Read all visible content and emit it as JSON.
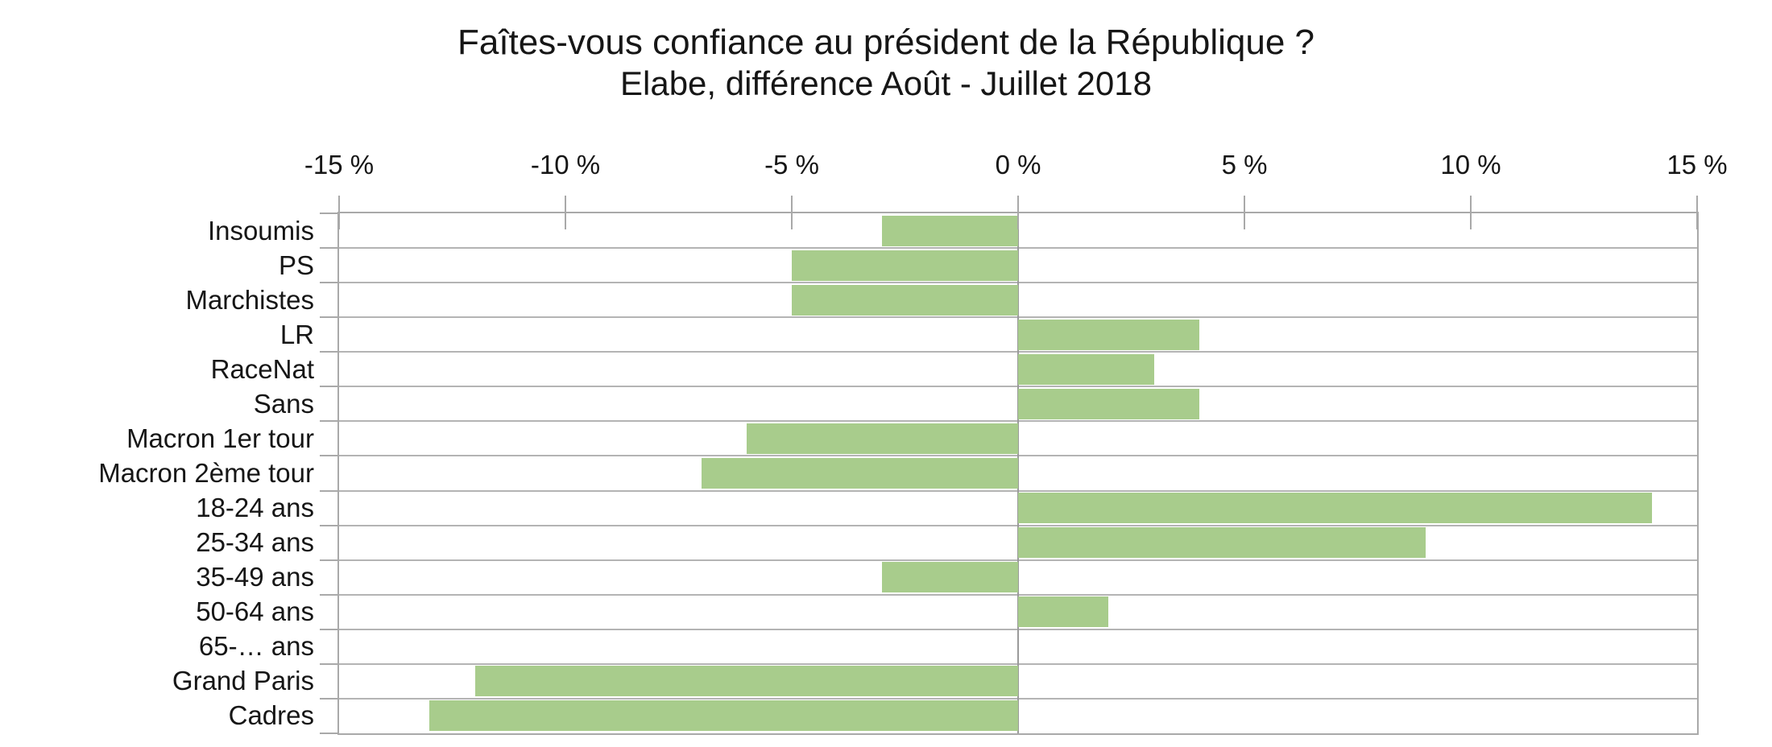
{
  "chart_data": {
    "type": "bar",
    "orientation": "horizontal",
    "title": "Faîtes-vous confiance au président de la République ?",
    "subtitle": "Elabe, différence Août - Juillet 2018",
    "categories": [
      "Insoumis",
      "PS",
      "Marchistes",
      "LR",
      "RaceNat",
      "Sans",
      "Macron 1er tour",
      "Macron 2ème tour",
      "18-24 ans",
      "25-34 ans",
      "35-49 ans",
      "50-64 ans",
      "65-… ans",
      "Grand Paris",
      "Cadres"
    ],
    "values": [
      -3,
      -5,
      -5,
      4,
      3,
      4,
      -6,
      -7,
      14,
      9,
      -3,
      2,
      0,
      -12,
      -13
    ],
    "unit": "%",
    "xlim": [
      -15,
      15
    ],
    "x_ticks": [
      {
        "value": -15,
        "label": "-15 %"
      },
      {
        "value": -10,
        "label": "-10 %"
      },
      {
        "value": -5,
        "label": "-5 %"
      },
      {
        "value": 0,
        "label": "0 %"
      },
      {
        "value": 5,
        "label": "5 %"
      },
      {
        "value": 10,
        "label": "10 %"
      },
      {
        "value": 15,
        "label": "15 %"
      }
    ],
    "bar_color": "#a8cc8c",
    "grid_color": "#b4b4b4",
    "axis_color": "#a9a9a9",
    "zero_line_color": "#9b9b9b",
    "grid": true,
    "legend": false,
    "gridlines": "horizontal-only",
    "value_axis_position": "top"
  }
}
